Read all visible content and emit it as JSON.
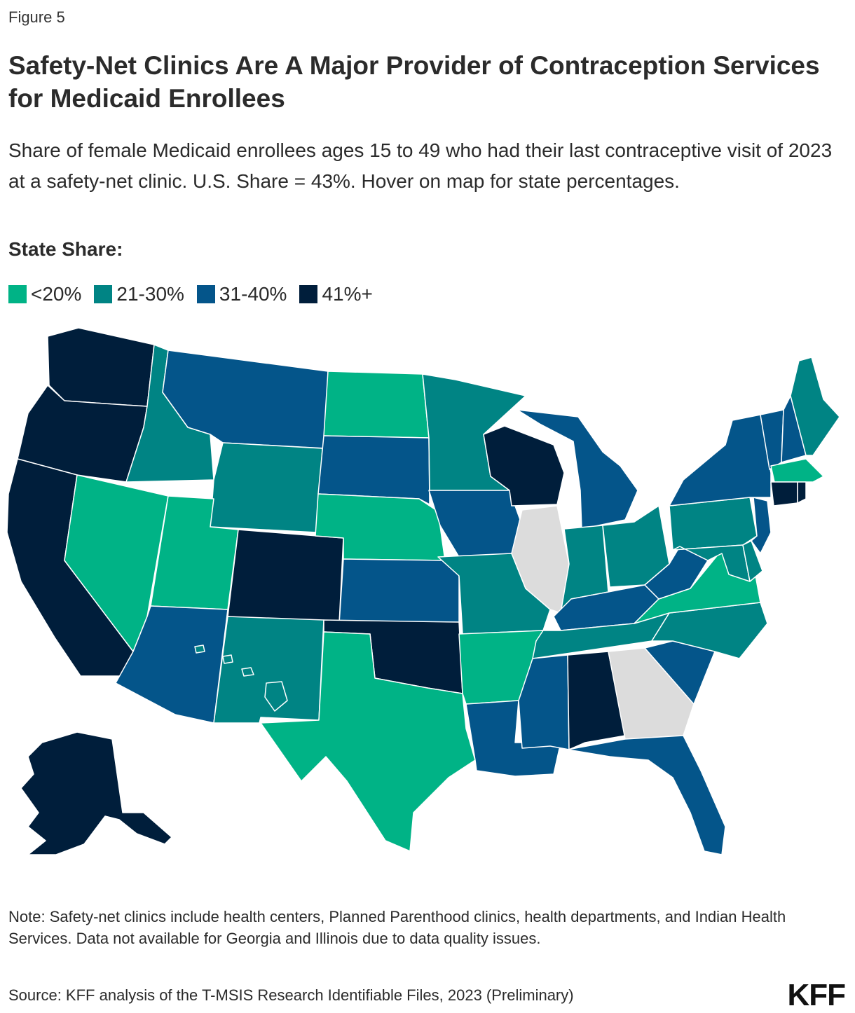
{
  "figure_label": "Figure 5",
  "title": "Safety-Net Clinics Are A Major Provider of Contraception Services for Medicaid Enrollees",
  "subtitle": "Share of female Medicaid enrollees ages 15 to 49 who had their last contraceptive visit of 2023 at a safety-net clinic. U.S. Share = 43%. Hover on map for state percentages.",
  "legend": {
    "title": "State Share:",
    "items": [
      {
        "key": "le20",
        "label": "<20%",
        "color": "#00b386"
      },
      {
        "key": "r21_30",
        "label": "21-30%",
        "color": "#008484"
      },
      {
        "key": "r31_40",
        "label": "31-40%",
        "color": "#04558a"
      },
      {
        "key": "r41p",
        "label": "41%+",
        "color": "#001e3b"
      }
    ],
    "no_data_color": "#dcdcdc"
  },
  "map_data": {
    "category_by_state": {
      "WA": "r41p",
      "OR": "r41p",
      "CA": "r41p",
      "AK": "r41p",
      "CO": "r41p",
      "WI": "r41p",
      "OK": "r41p",
      "AL": "r41p",
      "CT": "r41p",
      "RI": "r41p",
      "MT": "r31_40",
      "SD": "r31_40",
      "IA": "r31_40",
      "KS": "r31_40",
      "AZ": "r31_40",
      "MI": "r31_40",
      "NY": "r31_40",
      "VT": "r31_40",
      "NH": "r31_40",
      "NJ": "r31_40",
      "KY": "r31_40",
      "WV": "r31_40",
      "SC": "r31_40",
      "LA": "r31_40",
      "MS": "r31_40",
      "FL": "r31_40",
      "ID": "r21_30",
      "WY": "r21_30",
      "MN": "r21_30",
      "ME": "r21_30",
      "IN": "r21_30",
      "OH": "r21_30",
      "PA": "r21_30",
      "NM": "r21_30",
      "MO": "r21_30",
      "TN": "r21_30",
      "NC": "r21_30",
      "HI": "r21_30",
      "MD": "r21_30",
      "DE": "r21_30",
      "NV": "le20",
      "UT": "le20",
      "ND": "le20",
      "NE": "le20",
      "TX": "le20",
      "AR": "le20",
      "VA": "le20",
      "MA": "le20",
      "IL": "none",
      "GA": "none"
    }
  },
  "note": "Note: Safety-net clinics include health centers, Planned Parenthood clinics, health departments, and Indian Health Services. Data not available for Georgia and Illinois due to data quality issues.",
  "source": "Source: KFF analysis of the T-MSIS Research Identifiable Files, 2023 (Preliminary)",
  "logo": "KFF"
}
